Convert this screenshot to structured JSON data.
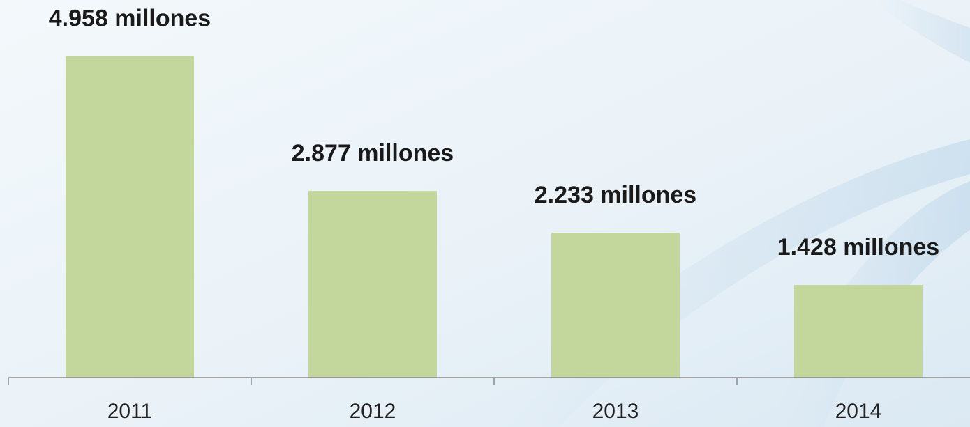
{
  "chart_data": {
    "type": "bar",
    "categories": [
      "2011",
      "2012",
      "2013",
      "2014"
    ],
    "values": [
      4.958,
      2.877,
      2.233,
      1.428
    ],
    "value_labels": [
      "4.958 millones",
      "2.877 millones",
      "2.233 millones",
      "1.428 millones"
    ],
    "title": "",
    "xlabel": "",
    "ylabel": "",
    "ylim": [
      0,
      5.3
    ],
    "grid": false,
    "legend": "none",
    "bar_color": "#c3d69b",
    "axis_color": "#8c8c8c",
    "background_color": "#eef5fa"
  }
}
